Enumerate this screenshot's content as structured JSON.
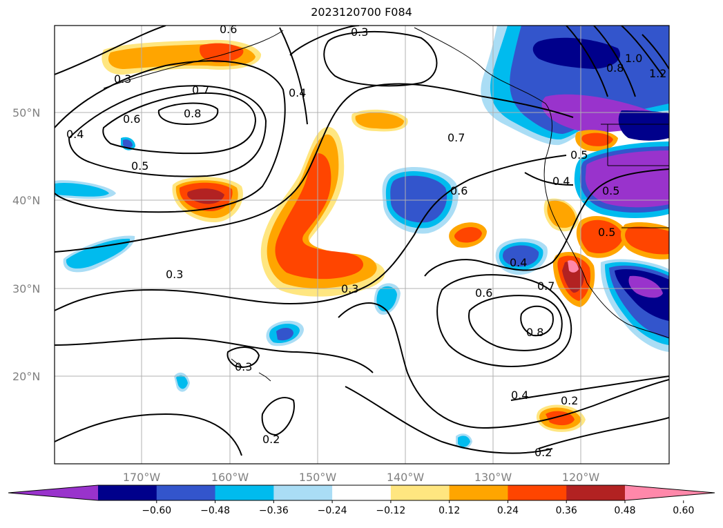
{
  "title": "2023120700 F084",
  "map": {
    "lon_range": [
      -180,
      -110
    ],
    "lat_range": [
      10,
      60
    ],
    "lat_ticks": [
      "50°N",
      "40°N",
      "30°N",
      "20°N"
    ],
    "lon_ticks": [
      "170°W",
      "160°W",
      "150°W",
      "140°W",
      "130°W",
      "120°W"
    ],
    "grid": true
  },
  "colorbar": {
    "ticks": [
      "−0.60",
      "−0.48",
      "−0.36",
      "−0.24",
      "−0.12",
      "0.12",
      "0.24",
      "0.36",
      "0.48",
      "0.60"
    ],
    "colors": [
      "#9933cc",
      "#00008b",
      "#3355cc",
      "#00bbee",
      "#aaddf5",
      "#ffffff",
      "#ffe680",
      "#ffa500",
      "#ff4500",
      "#b22222",
      "#ff88aa"
    ]
  },
  "contour_labels": [
    "0.6",
    "0.3",
    "0.3",
    "0.7",
    "0.8",
    "0.6",
    "0.4",
    "0.5",
    "0.4",
    "0.7",
    "0.6",
    "1.0",
    "0.8",
    "1.2",
    "0.5",
    "0.4",
    "0.5",
    "0.5",
    "0.3",
    "0.3",
    "0.4",
    "0.6",
    "0.7",
    "0.8",
    "0.3",
    "0.4",
    "0.2",
    "0.2",
    "0.2"
  ]
}
